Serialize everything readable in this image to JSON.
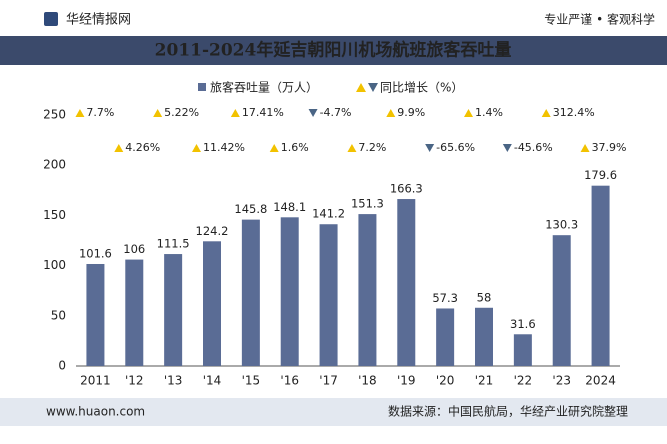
{
  "header": {
    "brand": "华经情报网",
    "slogan": "专业严谨 • 客观科学"
  },
  "footer": {
    "website": "www.huaon.com",
    "source": "数据来源：中国民航局，华经产业研究院整理"
  },
  "chart_data": {
    "type": "bar",
    "title": "2011-2024年延吉朝阳川机场航班旅客吞吐量",
    "categories": [
      "2011",
      "'12",
      "'13",
      "'14",
      "'15",
      "'16",
      "'17",
      "'18",
      "'19",
      "'20",
      "'21",
      "'22",
      "'23",
      "2024"
    ],
    "series": [
      {
        "name": "旅客吞吐量（万人）",
        "color": "#5a6c95",
        "values": [
          101.6,
          106,
          111.5,
          124.2,
          145.8,
          148.1,
          141.2,
          151.3,
          166.3,
          57.3,
          58,
          31.6,
          130.3,
          179.6
        ]
      },
      {
        "name": "同比增长（%）",
        "color": "#f2c200",
        "negative_color": "#4a6585",
        "values": [
          7.7,
          4.26,
          5.22,
          11.42,
          17.41,
          1.6,
          -4.7,
          7.2,
          9.9,
          -65.6,
          1.4,
          -45.6,
          312.4,
          37.9
        ],
        "value_labels": [
          "7.7%",
          "4.26%",
          "5.22%",
          "11.42%",
          "17.41%",
          "1.6%",
          "-4.7%",
          "7.2%",
          "9.9%",
          "-65.6%",
          "1.4%",
          "-45.6%",
          "312.4%",
          "37.9%"
        ]
      }
    ],
    "ylim": [
      0,
      250
    ],
    "yticks": [
      0,
      50,
      100,
      150,
      200,
      250
    ],
    "grid": false
  }
}
